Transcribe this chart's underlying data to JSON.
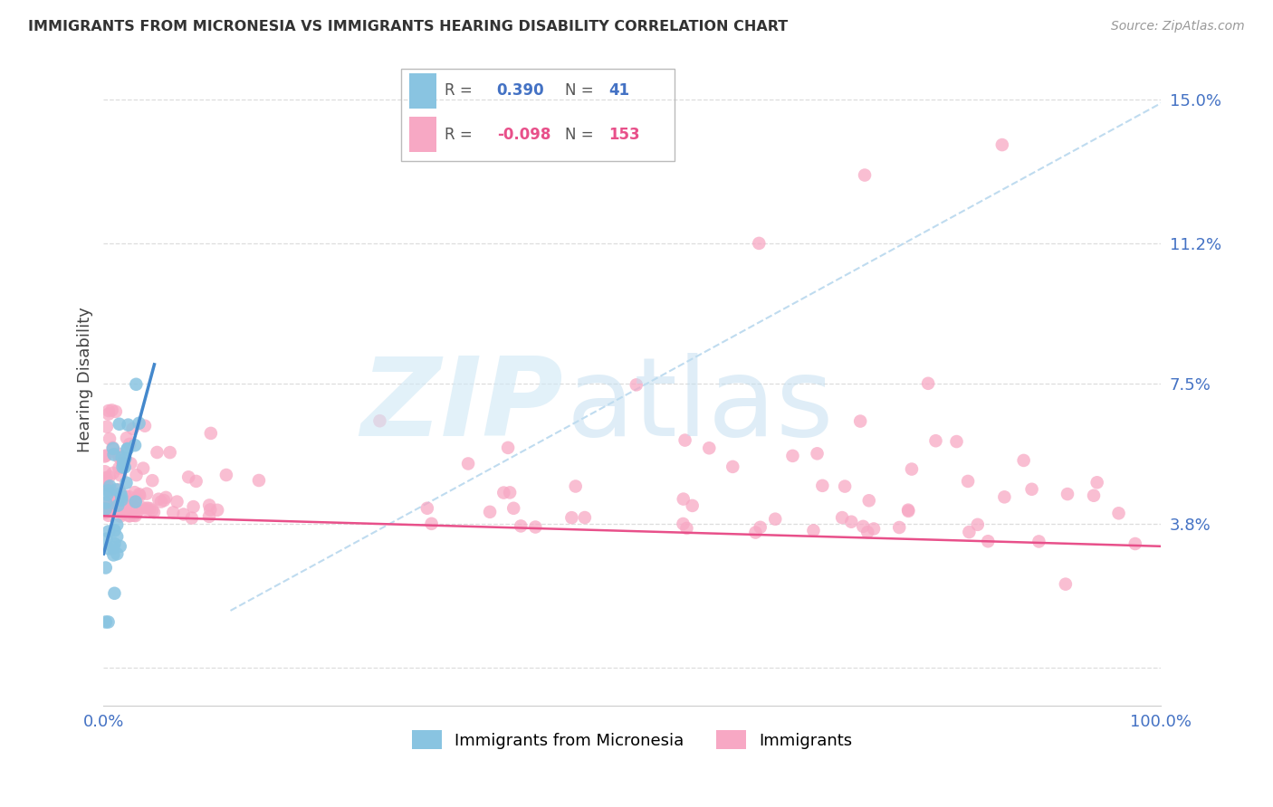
{
  "title": "IMMIGRANTS FROM MICRONESIA VS IMMIGRANTS HEARING DISABILITY CORRELATION CHART",
  "source": "Source: ZipAtlas.com",
  "ylabel": "Hearing Disability",
  "ytick_vals": [
    0.0,
    0.038,
    0.075,
    0.112,
    0.15
  ],
  "ytick_labels": [
    "",
    "3.8%",
    "7.5%",
    "11.2%",
    "15.0%"
  ],
  "xlim": [
    0.0,
    1.0
  ],
  "ylim": [
    -0.01,
    0.162
  ],
  "legend_blue_r": "0.390",
  "legend_blue_n": "41",
  "legend_pink_r": "-0.098",
  "legend_pink_n": "153",
  "blue_scatter_color": "#89c4e1",
  "pink_scatter_color": "#f7a8c4",
  "blue_line_color": "#4488cc",
  "pink_line_color": "#e8508a",
  "dashed_line_color": "#b8d8ee",
  "grid_color": "#dddddd",
  "ytick_color": "#4472c4",
  "xtick_color": "#4472c4",
  "title_color": "#333333",
  "source_color": "#999999",
  "watermark_zip_color": "#d0e8f5",
  "watermark_atlas_color": "#c0ddf0",
  "blue_line_x0": 0.0,
  "blue_line_y0": 0.03,
  "blue_line_x1": 0.048,
  "blue_line_y1": 0.08,
  "pink_line_x0": 0.0,
  "pink_line_y0": 0.04,
  "pink_line_x1": 1.0,
  "pink_line_y1": 0.032,
  "dash_line_x0": 0.12,
  "dash_line_y0": 0.015,
  "dash_line_x1": 1.02,
  "dash_line_y1": 0.152
}
